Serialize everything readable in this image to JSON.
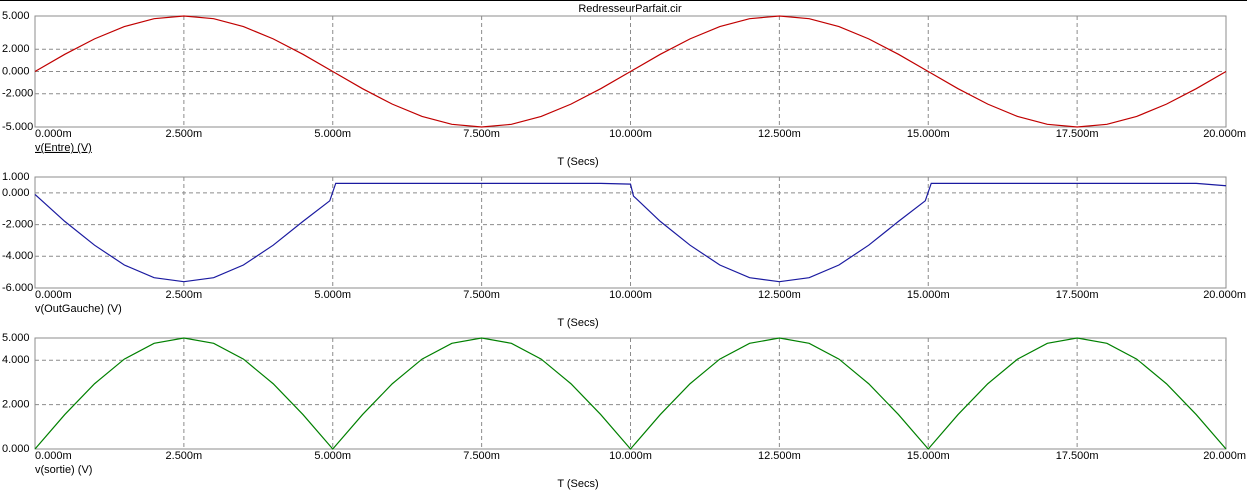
{
  "title": "RedresseurParfait.cir",
  "chart_data": [
    {
      "type": "line",
      "xlabel": "T (Secs)",
      "x": [
        0,
        0.5,
        1,
        1.5,
        2,
        2.5,
        3,
        3.5,
        4,
        4.5,
        5,
        5.5,
        6,
        6.5,
        7,
        7.5,
        8,
        8.5,
        9,
        9.5,
        10,
        10.5,
        11,
        11.5,
        12,
        12.5,
        13,
        13.5,
        14,
        14.5,
        15,
        15.5,
        16,
        16.5,
        17,
        17.5,
        18,
        18.5,
        19,
        19.5,
        20
      ],
      "series": [
        {
          "name": "v(Entre) (V)",
          "color": "#c00000",
          "values": [
            0,
            1.55,
            2.94,
            4.05,
            4.76,
            5,
            4.76,
            4.05,
            2.94,
            1.55,
            0,
            -1.55,
            -2.94,
            -4.05,
            -4.76,
            -5,
            -4.76,
            -4.05,
            -2.94,
            -1.55,
            0,
            1.55,
            2.94,
            4.05,
            4.76,
            5,
            4.76,
            4.05,
            2.94,
            1.55,
            0,
            -1.55,
            -2.94,
            -4.05,
            -4.76,
            -5,
            -4.76,
            -4.05,
            -2.94,
            -1.55,
            0
          ]
        }
      ],
      "xlim": [
        0,
        20
      ],
      "ylim": [
        -5,
        5
      ],
      "xticks": [
        {
          "value": 0,
          "label": "0.000m"
        },
        {
          "value": 2.5,
          "label": "2.500m"
        },
        {
          "value": 5,
          "label": "5.000m"
        },
        {
          "value": 7.5,
          "label": "7.500m"
        },
        {
          "value": 10,
          "label": "10.000m"
        },
        {
          "value": 12.5,
          "label": "12.500m"
        },
        {
          "value": 15,
          "label": "15.000m"
        },
        {
          "value": 17.5,
          "label": "17.500m"
        },
        {
          "value": 20,
          "label": "20.000m"
        }
      ],
      "yticks": [
        {
          "value": -5,
          "label": "-5.000"
        },
        {
          "value": -2,
          "label": "-2.000"
        },
        {
          "value": 0,
          "label": "0.000"
        },
        {
          "value": 2,
          "label": "2.000"
        },
        {
          "value": 5,
          "label": "5.000"
        }
      ],
      "grid": true
    },
    {
      "type": "line",
      "xlabel": "T (Secs)",
      "x": [
        0,
        0.5,
        1,
        1.5,
        2,
        2.5,
        3,
        3.5,
        4,
        4.5,
        4.95,
        5.05,
        5.5,
        6,
        6.5,
        7,
        7.5,
        8,
        8.5,
        9,
        9.5,
        10,
        10.05,
        10.5,
        11,
        11.5,
        12,
        12.5,
        13,
        13.5,
        14,
        14.5,
        14.95,
        15.05,
        15.5,
        16,
        16.5,
        17,
        17.5,
        18,
        18.5,
        19,
        19.5,
        20
      ],
      "series": [
        {
          "name": "v(OutGauche) (V)",
          "color": "#1a1aa0",
          "values": [
            -0.1,
            -1.8,
            -3.3,
            -4.55,
            -5.35,
            -5.6,
            -5.35,
            -4.55,
            -3.3,
            -1.8,
            -0.5,
            0.6,
            0.6,
            0.6,
            0.6,
            0.6,
            0.6,
            0.6,
            0.6,
            0.6,
            0.6,
            0.55,
            -0.2,
            -1.8,
            -3.3,
            -4.55,
            -5.35,
            -5.6,
            -5.35,
            -4.55,
            -3.3,
            -1.8,
            -0.5,
            0.6,
            0.6,
            0.6,
            0.6,
            0.6,
            0.6,
            0.6,
            0.6,
            0.6,
            0.6,
            0.45
          ]
        }
      ],
      "xlim": [
        0,
        20
      ],
      "ylim": [
        -6,
        1
      ],
      "xticks": [
        {
          "value": 0,
          "label": "0.000m"
        },
        {
          "value": 2.5,
          "label": "2.500m"
        },
        {
          "value": 5,
          "label": "5.000m"
        },
        {
          "value": 7.5,
          "label": "7.500m"
        },
        {
          "value": 10,
          "label": "10.000m"
        },
        {
          "value": 12.5,
          "label": "12.500m"
        },
        {
          "value": 15,
          "label": "15.000m"
        },
        {
          "value": 17.5,
          "label": "17.500m"
        },
        {
          "value": 20,
          "label": "20.000m"
        }
      ],
      "yticks": [
        {
          "value": -6,
          "label": "-6.000"
        },
        {
          "value": -4,
          "label": "-4.000"
        },
        {
          "value": -2,
          "label": "-2.000"
        },
        {
          "value": 0,
          "label": "0.000"
        },
        {
          "value": 1,
          "label": "1.000"
        }
      ],
      "grid": true
    },
    {
      "type": "line",
      "xlabel": "T (Secs)",
      "x": [
        0,
        0.5,
        1,
        1.5,
        2,
        2.5,
        3,
        3.5,
        4,
        4.5,
        5,
        5.5,
        6,
        6.5,
        7,
        7.5,
        8,
        8.5,
        9,
        9.5,
        10,
        10.5,
        11,
        11.5,
        12,
        12.5,
        13,
        13.5,
        14,
        14.5,
        15,
        15.5,
        16,
        16.5,
        17,
        17.5,
        18,
        18.5,
        19,
        19.5,
        20
      ],
      "series": [
        {
          "name": "v(sortie) (V)",
          "color": "#008000",
          "values": [
            0,
            1.55,
            2.94,
            4.05,
            4.76,
            5,
            4.76,
            4.05,
            2.94,
            1.55,
            0,
            1.55,
            2.94,
            4.05,
            4.76,
            5,
            4.76,
            4.05,
            2.94,
            1.55,
            0,
            1.55,
            2.94,
            4.05,
            4.76,
            5,
            4.76,
            4.05,
            2.94,
            1.55,
            0,
            1.55,
            2.94,
            4.05,
            4.76,
            5,
            4.76,
            4.05,
            2.94,
            1.55,
            0
          ]
        }
      ],
      "xlim": [
        0,
        20
      ],
      "ylim": [
        0,
        5
      ],
      "xticks": [
        {
          "value": 0,
          "label": "0.000m"
        },
        {
          "value": 2.5,
          "label": "2.500m"
        },
        {
          "value": 5,
          "label": "5.000m"
        },
        {
          "value": 7.5,
          "label": "7.500m"
        },
        {
          "value": 10,
          "label": "10.000m"
        },
        {
          "value": 12.5,
          "label": "12.500m"
        },
        {
          "value": 15,
          "label": "15.000m"
        },
        {
          "value": 17.5,
          "label": "17.500m"
        },
        {
          "value": 20,
          "label": "20.000m"
        }
      ],
      "yticks": [
        {
          "value": 0,
          "label": "0.000"
        },
        {
          "value": 2,
          "label": "2.000"
        },
        {
          "value": 4,
          "label": "4.000"
        },
        {
          "value": 5,
          "label": "5.000"
        }
      ],
      "grid": true
    }
  ]
}
